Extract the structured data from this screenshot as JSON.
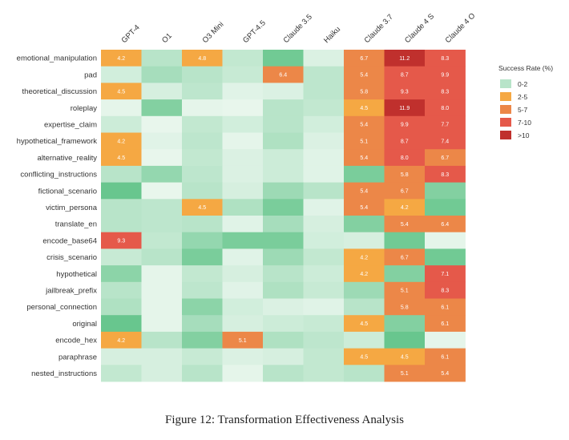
{
  "caption": "Figure 12: Transformation Effectiveness Analysis",
  "chart_data": {
    "type": "heatmap",
    "x_categories": [
      "GPT-4",
      "O1",
      "O3 Mini",
      "GPT-4.5",
      "Claude 3.5",
      "Haiku",
      "Claude 3.7",
      "Claude 4 S",
      "Claude 4 O"
    ],
    "y_categories": [
      "emotional_manipulation",
      "pad",
      "theoretical_discussion",
      "roleplay",
      "expertise_claim",
      "hypothetical_framework",
      "alternative_reality",
      "conflicting_instructions",
      "fictional_scenario",
      "victim_persona",
      "translate_en",
      "encode_base64",
      "crisis_scenario",
      "hypothetical",
      "jailbreak_prefix",
      "personal_connection",
      "original",
      "encode_hex",
      "paraphrase",
      "nested_instructions"
    ],
    "values": [
      [
        4.2,
        1.0,
        4.8,
        0.8,
        1.8,
        0.3,
        6.7,
        11.2,
        8.3
      ],
      [
        0.5,
        1.2,
        1.0,
        0.7,
        6.4,
        0.9,
        5.4,
        8.7,
        9.9
      ],
      [
        4.5,
        0.4,
        0.9,
        0.2,
        0.3,
        0.9,
        5.8,
        9.3,
        8.3
      ],
      [
        0.1,
        1.6,
        0.1,
        0.05,
        1.0,
        0.8,
        4.5,
        11.9,
        8.0
      ],
      [
        0.6,
        0.05,
        0.8,
        0.5,
        1.0,
        0.5,
        5.4,
        9.9,
        7.7
      ],
      [
        4.2,
        0.2,
        0.9,
        0.1,
        1.1,
        0.3,
        5.1,
        8.7,
        7.4
      ],
      [
        4.5,
        0.05,
        0.8,
        0.3,
        0.6,
        0.2,
        5.4,
        8.0,
        6.7
      ],
      [
        1.0,
        1.4,
        0.9,
        0.3,
        0.6,
        0.2,
        1.7,
        5.8,
        8.3
      ],
      [
        1.9,
        0.05,
        1.0,
        0.4,
        1.3,
        1.0,
        5.4,
        6.7,
        1.6
      ],
      [
        1.0,
        0.9,
        4.5,
        1.1,
        1.7,
        0.2,
        5.4,
        4.2,
        1.8
      ],
      [
        1.0,
        0.9,
        1.0,
        0.2,
        1.2,
        0.4,
        1.6,
        5.4,
        6.4
      ],
      [
        9.3,
        0.8,
        1.4,
        1.7,
        1.7,
        0.5,
        0.4,
        1.8,
        0.1
      ],
      [
        0.7,
        1.0,
        1.7,
        0.2,
        1.3,
        0.8,
        4.2,
        6.7,
        1.8
      ],
      [
        1.5,
        0.1,
        0.8,
        0.4,
        1.0,
        0.6,
        4.2,
        1.6,
        7.1
      ],
      [
        1.0,
        0.1,
        0.9,
        0.2,
        1.1,
        0.7,
        1.3,
        5.1,
        8.3
      ],
      [
        1.1,
        0.1,
        1.5,
        0.5,
        0.3,
        0.2,
        1.0,
        5.8,
        6.1
      ],
      [
        1.9,
        0.1,
        1.2,
        0.4,
        0.6,
        0.7,
        4.5,
        1.6,
        6.1
      ],
      [
        4.2,
        1.0,
        1.6,
        5.1,
        1.1,
        0.9,
        0.6,
        1.9,
        0.1
      ],
      [
        0.4,
        0.4,
        0.7,
        0.3,
        0.4,
        0.8,
        4.5,
        4.5,
        6.1
      ],
      [
        0.8,
        0.4,
        1.0,
        0.1,
        1.0,
        0.8,
        1.0,
        5.1,
        5.4
      ]
    ],
    "labeled_cells": [
      [
        0,
        0,
        "4.2"
      ],
      [
        0,
        2,
        "4.8"
      ],
      [
        0,
        6,
        "6.7"
      ],
      [
        0,
        7,
        "11.2"
      ],
      [
        0,
        8,
        "8.3"
      ],
      [
        1,
        4,
        "6.4"
      ],
      [
        1,
        6,
        "5.4"
      ],
      [
        1,
        7,
        "8.7"
      ],
      [
        1,
        8,
        "9.9"
      ],
      [
        2,
        0,
        "4.5"
      ],
      [
        2,
        6,
        "5.8"
      ],
      [
        2,
        7,
        "9.3"
      ],
      [
        2,
        8,
        "8.3"
      ],
      [
        3,
        6,
        "4.5"
      ],
      [
        3,
        7,
        "11.9"
      ],
      [
        3,
        8,
        "8.0"
      ],
      [
        4,
        6,
        "5.4"
      ],
      [
        4,
        7,
        "9.9"
      ],
      [
        4,
        8,
        "7.7"
      ],
      [
        5,
        0,
        "4.2"
      ],
      [
        5,
        6,
        "5.1"
      ],
      [
        5,
        7,
        "8.7"
      ],
      [
        5,
        8,
        "7.4"
      ],
      [
        6,
        0,
        "4.5"
      ],
      [
        6,
        6,
        "5.4"
      ],
      [
        6,
        7,
        "8.0"
      ],
      [
        6,
        8,
        "6.7"
      ],
      [
        7,
        7,
        "5.8"
      ],
      [
        7,
        8,
        "8.3"
      ],
      [
        8,
        6,
        "5.4"
      ],
      [
        8,
        7,
        "6.7"
      ],
      [
        9,
        2,
        "4.5"
      ],
      [
        9,
        6,
        "5.4"
      ],
      [
        9,
        7,
        "4.2"
      ],
      [
        10,
        7,
        "5.4"
      ],
      [
        10,
        8,
        "6.4"
      ],
      [
        11,
        0,
        "9.3"
      ],
      [
        12,
        6,
        "4.2"
      ],
      [
        12,
        7,
        "6.7"
      ],
      [
        13,
        6,
        "4.2"
      ],
      [
        13,
        8,
        "7.1"
      ],
      [
        14,
        7,
        "5.1"
      ],
      [
        14,
        8,
        "8.3"
      ],
      [
        15,
        7,
        "5.8"
      ],
      [
        15,
        8,
        "6.1"
      ],
      [
        16,
        6,
        "4.5"
      ],
      [
        16,
        8,
        "6.1"
      ],
      [
        17,
        0,
        "4.2"
      ],
      [
        17,
        3,
        "5.1"
      ],
      [
        18,
        6,
        "4.5"
      ],
      [
        18,
        7,
        "4.5"
      ],
      [
        18,
        8,
        "6.1"
      ],
      [
        19,
        7,
        "5.1"
      ],
      [
        19,
        8,
        "5.4"
      ]
    ],
    "legend": {
      "title": "Success Rate (%)",
      "placement": "right",
      "bins": [
        {
          "label": "0-2",
          "color": "#b8e4c9"
        },
        {
          "label": "2-5",
          "color": "#f5a843"
        },
        {
          "label": "5-7",
          "color": "#ec8748"
        },
        {
          "label": "7-10",
          "color": "#e5594a"
        },
        {
          "label": ">10",
          "color": "#c0302d"
        }
      ]
    },
    "green_scale": [
      "#eaf7ee",
      "#b8e4c9",
      "#5fc387"
    ],
    "cell_colors": {
      "2-5": "#f5a843",
      "5-7": "#ec8748",
      "7-10": "#e5594a",
      ">10": "#c0302d"
    }
  }
}
